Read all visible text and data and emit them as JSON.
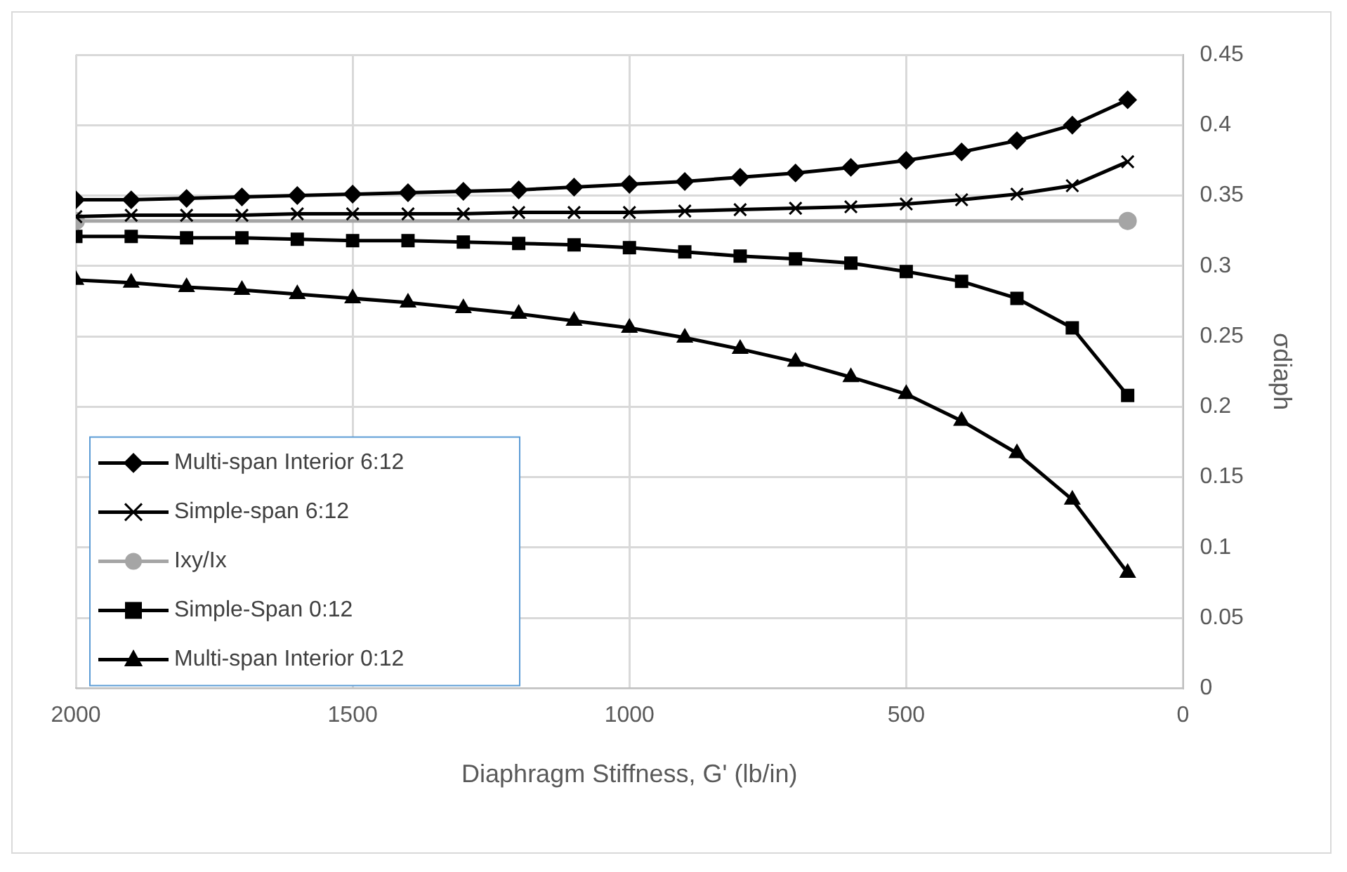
{
  "chart_data": {
    "type": "line",
    "xlabel": "Diaphragm Stiffness, G' (lb/in)",
    "ylabel": "σdiaph",
    "x": [
      2000,
      1900,
      1800,
      1700,
      1600,
      1500,
      1400,
      1300,
      1200,
      1100,
      1000,
      900,
      800,
      700,
      600,
      500,
      400,
      300,
      200,
      100
    ],
    "xlim": [
      2000,
      0
    ],
    "xticks": [
      2000,
      1500,
      1000,
      500,
      0
    ],
    "ylim": [
      0,
      0.45
    ],
    "yticks": [
      0,
      0.05,
      0.1,
      0.15,
      0.2,
      0.25,
      0.3,
      0.35,
      0.4,
      0.45
    ],
    "grid": true,
    "legend": "bottom left",
    "line_style": "solid",
    "series": [
      {
        "name": "Multi-span Interior 6:12",
        "color": "#000000",
        "marker": "diamond",
        "values": [
          0.347,
          0.347,
          0.348,
          0.349,
          0.35,
          0.351,
          0.352,
          0.353,
          0.354,
          0.356,
          0.358,
          0.36,
          0.363,
          0.366,
          0.37,
          0.375,
          0.381,
          0.389,
          0.4,
          0.418
        ]
      },
      {
        "name": "Simple-span 6:12",
        "color": "#000000",
        "marker": "cross",
        "values": [
          0.335,
          0.336,
          0.336,
          0.336,
          0.337,
          0.337,
          0.337,
          0.337,
          0.338,
          0.338,
          0.338,
          0.339,
          0.34,
          0.341,
          0.342,
          0.344,
          0.347,
          0.351,
          0.357,
          0.374
        ]
      },
      {
        "name": "Ixy/Ix",
        "color": "#a5a5a5",
        "marker": "circle",
        "x": [
          2000,
          100
        ],
        "values": [
          0.332,
          0.332
        ]
      },
      {
        "name": "Simple-Span 0:12",
        "color": "#000000",
        "marker": "square",
        "values": [
          0.321,
          0.321,
          0.32,
          0.32,
          0.319,
          0.318,
          0.318,
          0.317,
          0.316,
          0.315,
          0.313,
          0.31,
          0.307,
          0.305,
          0.302,
          0.296,
          0.289,
          0.277,
          0.256,
          0.208
        ]
      },
      {
        "name": "Multi-span Interior 0:12",
        "color": "#000000",
        "marker": "triangle",
        "values": [
          0.29,
          0.288,
          0.285,
          0.283,
          0.28,
          0.277,
          0.274,
          0.27,
          0.266,
          0.261,
          0.256,
          0.249,
          0.241,
          0.232,
          0.221,
          0.209,
          0.19,
          0.167,
          0.134,
          0.082
        ]
      }
    ]
  }
}
